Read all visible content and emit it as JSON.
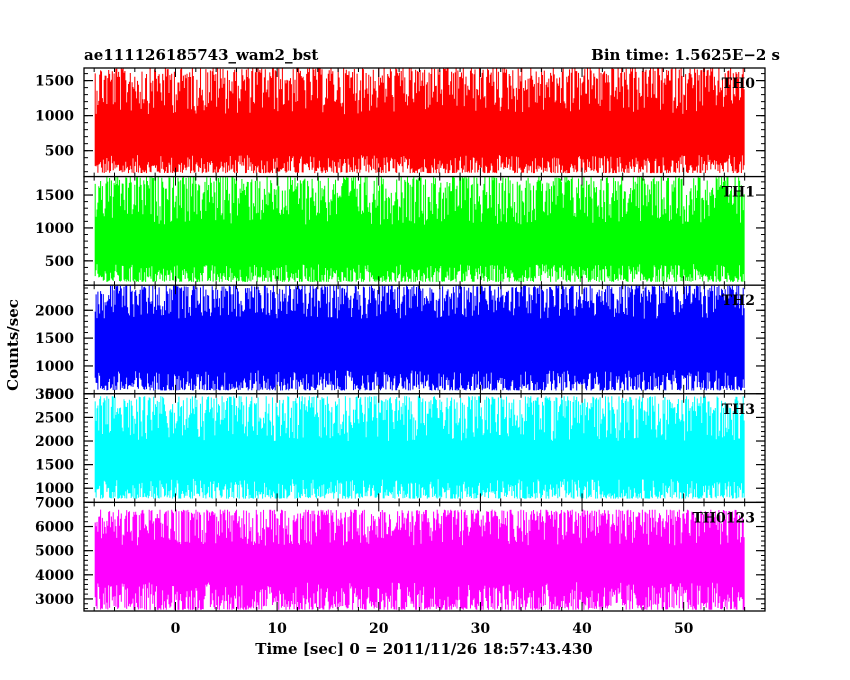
{
  "chart_data": {
    "type": "line",
    "title_left": "ae111126185743_wam2_bst",
    "title_right": "Bin time: 1.5625E−2 s",
    "xlabel": "Time [sec] 0 = 2011/11/26 18:57:43.430",
    "ylabel": "Counts/sec",
    "xlim": [
      -9,
      58
    ],
    "x_ticks": [
      0,
      10,
      20,
      30,
      40,
      50
    ],
    "x_tick_labels": [
      "0",
      "10",
      "20",
      "30",
      "40",
      "50"
    ],
    "data_x_range": [
      -7.9,
      56
    ],
    "grid": false,
    "panels": [
      {
        "label": "TH0",
        "color": "#ff0000",
        "ylim": [
          130,
          1680
        ],
        "y_ticks": [
          500,
          1000,
          1500
        ],
        "y_tick_labels": [
          "500",
          "1000",
          "1500"
        ],
        "band_low": [
          180,
          440
        ],
        "band_high": [
          1020,
          1680
        ]
      },
      {
        "label": "TH1",
        "color": "#00ff00",
        "ylim": [
          130,
          1780
        ],
        "y_ticks": [
          500,
          1000,
          1500
        ],
        "y_tick_labels": [
          "500",
          "1000",
          "1500"
        ],
        "band_low": [
          180,
          450
        ],
        "band_high": [
          1050,
          1780
        ]
      },
      {
        "label": "TH2",
        "color": "#0000ff",
        "ylim": [
          500,
          2450
        ],
        "y_ticks": [
          500,
          1000,
          1500,
          2000
        ],
        "y_tick_labels": [
          "500",
          "1000",
          "1500",
          "2000"
        ],
        "band_low": [
          560,
          920
        ],
        "band_high": [
          1850,
          2450
        ]
      },
      {
        "label": "TH3",
        "color": "#00ffff",
        "ylim": [
          700,
          3000
        ],
        "y_ticks": [
          1000,
          1500,
          2000,
          2500,
          3000
        ],
        "y_tick_labels": [
          "1000",
          "1500",
          "2000",
          "2500",
          "3000"
        ],
        "band_low": [
          780,
          1200
        ],
        "band_high": [
          2000,
          2950
        ]
      },
      {
        "label": "TH0123",
        "color": "#ff00ff",
        "ylim": [
          2500,
          7000
        ],
        "y_ticks": [
          3000,
          4000,
          5000,
          6000,
          7000
        ],
        "y_tick_labels": [
          "3000",
          "4000",
          "5000",
          "6000",
          "7000"
        ],
        "band_low": [
          2550,
          3700
        ],
        "band_high": [
          5200,
          6700
        ]
      }
    ]
  }
}
